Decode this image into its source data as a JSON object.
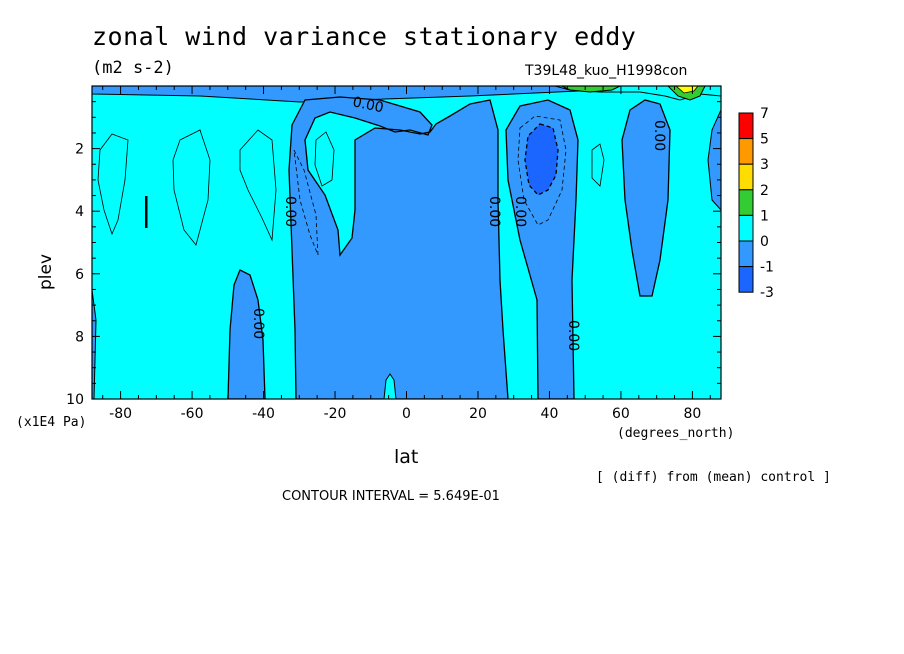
{
  "chart_data": {
    "type": "heatmap",
    "subtype": "filled-contour",
    "title": "zonal wind variance stationary eddy",
    "units": "(m2 s-2)",
    "experiment": "T39L48_kuo_H1998con",
    "xlabel": "lat",
    "xunits": "(degrees_north)",
    "ylabel": "plev",
    "yunits": "(x1E4 Pa)",
    "xlim": [
      -88,
      88
    ],
    "ylim": [
      0,
      10
    ],
    "y_reversed": true,
    "xticks": [
      -80,
      -60,
      -40,
      -20,
      0,
      20,
      40,
      60,
      80
    ],
    "yticks": [
      2,
      4,
      6,
      8,
      10
    ],
    "contour_label": "0.00",
    "contour_interval_text": "CONTOUR INTERVAL = 5.649E-01",
    "footnote": "[ (diff) from (mean) control ]",
    "colorbar": {
      "levels": [
        "7",
        "5",
        "3",
        "2",
        "1",
        "0",
        "-1",
        "-3"
      ],
      "colors": [
        "#ff0000",
        "#ff9900",
        "#ffcc00",
        "#ffff00",
        "#33cc33",
        "#00ffff",
        "#3399ff",
        "#1a66ff"
      ],
      "bands": [
        {
          "lo": 5,
          "hi": 7,
          "color": "#ff0000"
        },
        {
          "lo": 3,
          "hi": 5,
          "color": "#ff9900"
        },
        {
          "lo": 2,
          "hi": 3,
          "color": "#ffdd00"
        },
        {
          "lo": 1,
          "hi": 2,
          "color": "#33cc33"
        },
        {
          "lo": 0,
          "hi": 1,
          "color": "#00ffff"
        },
        {
          "lo": -1,
          "hi": 0,
          "color": "#3399ff"
        },
        {
          "lo": -3,
          "hi": -1,
          "color": "#1a66ff"
        }
      ]
    },
    "regions": [
      {
        "name": "negative band 0 to -1 near -48..-38",
        "value": -0.5
      },
      {
        "name": "negative band 0 to -1 from -32 to 28",
        "value": -0.5
      },
      {
        "name": "negative band 0 to -1 from 30 to 46",
        "value": -0.5
      },
      {
        "name": "minimum below -1 near 37N, 1.5-3.5",
        "value": -1.5
      },
      {
        "name": "negative band 0 to -1 from 60 to 76",
        "value": -0.5
      },
      {
        "name": "positive 1 to 3 near top at 50-80N",
        "value": 1.5
      }
    ]
  }
}
